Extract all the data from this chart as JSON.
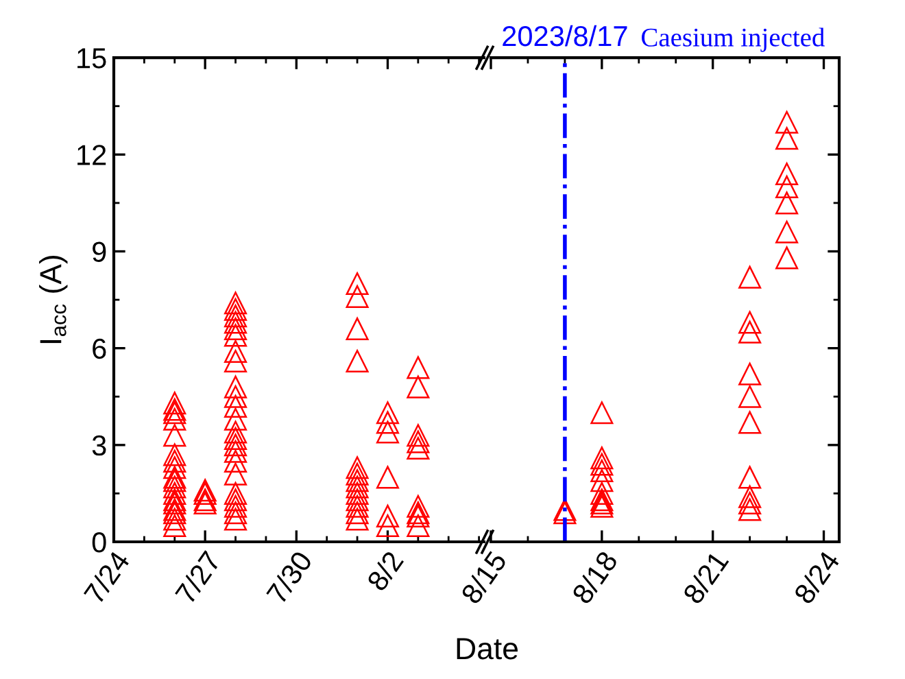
{
  "chart_data": [
    {
      "type": "scatter",
      "ylabel": "I$_{acc}$ (A)",
      "xlabel": "Date",
      "marker": "triangle",
      "xlim": [
        "2023-07-24",
        "2023-08-05T04:00"
      ],
      "xticks": [
        {
          "value": "2023-07-24",
          "label": "7/24"
        },
        {
          "value": "2023-07-27",
          "label": "7/27"
        },
        {
          "value": "2023-07-30",
          "label": "7/30"
        },
        {
          "value": "2023-08-02",
          "label": "8/2"
        }
      ],
      "ylim": [
        0,
        15
      ],
      "yticks": [
        0,
        3,
        6,
        9,
        12,
        15
      ],
      "series": [
        {
          "color": "#ff0000",
          "x": [
            "2023-07-26",
            "2023-07-26",
            "2023-07-26",
            "2023-07-26",
            "2023-07-26",
            "2023-07-26",
            "2023-07-26",
            "2023-07-26",
            "2023-07-26",
            "2023-07-26",
            "2023-07-26",
            "2023-07-26",
            "2023-07-26",
            "2023-07-26",
            "2023-07-26",
            "2023-07-26",
            "2023-07-26",
            "2023-07-26"
          ],
          "values": [
            4.3,
            4.1,
            4.0,
            3.8,
            3.3,
            2.7,
            2.5,
            2.3,
            2.0,
            1.9,
            1.7,
            1.5,
            1.3,
            1.2,
            1.0,
            0.9,
            0.7,
            0.5
          ]
        },
        {
          "color": "#ff0000",
          "x": [
            "2023-07-27",
            "2023-07-27",
            "2023-07-27",
            "2023-07-27"
          ],
          "values": [
            1.6,
            1.5,
            1.3,
            1.2
          ]
        },
        {
          "color": "#ff0000",
          "x": [
            "2023-07-28",
            "2023-07-28",
            "2023-07-28",
            "2023-07-28",
            "2023-07-28",
            "2023-07-28",
            "2023-07-28",
            "2023-07-28",
            "2023-07-28",
            "2023-07-28",
            "2023-07-28",
            "2023-07-28",
            "2023-07-28",
            "2023-07-28",
            "2023-07-28",
            "2023-07-28",
            "2023-07-28",
            "2023-07-28",
            "2023-07-28",
            "2023-07-28",
            "2023-07-28",
            "2023-07-28",
            "2023-07-28"
          ],
          "values": [
            7.4,
            7.2,
            7.0,
            6.8,
            6.6,
            6.4,
            5.9,
            5.6,
            4.8,
            4.5,
            4.2,
            3.8,
            3.4,
            3.2,
            3.0,
            2.8,
            2.5,
            2.1,
            1.5,
            1.3,
            1.1,
            0.9,
            0.7
          ]
        },
        {
          "color": "#ff0000",
          "x": [
            "2023-08-01",
            "2023-08-01",
            "2023-08-01",
            "2023-08-01",
            "2023-08-01",
            "2023-08-01",
            "2023-08-01",
            "2023-08-01",
            "2023-08-01",
            "2023-08-01",
            "2023-08-01",
            "2023-08-01",
            "2023-08-01"
          ],
          "values": [
            8.0,
            7.6,
            6.6,
            5.6,
            2.3,
            2.1,
            1.9,
            1.7,
            1.5,
            1.3,
            1.1,
            0.9,
            0.7
          ]
        },
        {
          "color": "#ff0000",
          "x": [
            "2023-08-02",
            "2023-08-02",
            "2023-08-02",
            "2023-08-02",
            "2023-08-02",
            "2023-08-02"
          ],
          "values": [
            4.0,
            3.7,
            3.4,
            2.0,
            0.8,
            0.5
          ]
        },
        {
          "color": "#ff0000",
          "x": [
            "2023-08-03",
            "2023-08-03",
            "2023-08-03",
            "2023-08-03",
            "2023-08-03",
            "2023-08-03",
            "2023-08-03",
            "2023-08-03",
            "2023-08-03"
          ],
          "values": [
            5.4,
            4.8,
            3.3,
            3.1,
            2.9,
            1.1,
            0.9,
            0.8,
            0.5
          ]
        }
      ]
    },
    {
      "type": "scatter",
      "marker": "triangle",
      "tick_labels": "x",
      "xlim": [
        "2023-08-15",
        "2023-08-24T10:00"
      ],
      "xticks": [
        {
          "value": "2023-08-15",
          "label": "8/15"
        },
        {
          "value": "2023-08-18",
          "label": "8/18"
        },
        {
          "value": "2023-08-21",
          "label": "8/21"
        },
        {
          "value": "2023-08-24",
          "label": "8/24"
        }
      ],
      "ylim": [
        0,
        15
      ],
      "yticks": [
        0,
        3,
        6,
        9,
        12,
        15
      ],
      "ref_lines": [
        {
          "axis": "x",
          "value": "2023-08-17",
          "label": "2023/8/17",
          "color": "#0000ff",
          "line_style": "dashdot"
        }
      ],
      "annotations": [
        "Caesium injected"
      ],
      "series": [
        {
          "color": "#ff0000",
          "x": [
            "2023-08-17",
            "2023-08-17"
          ],
          "values": [
            1.0,
            0.9
          ]
        },
        {
          "color": "#ff0000",
          "x": [
            "2023-08-18",
            "2023-08-18",
            "2023-08-18",
            "2023-08-18",
            "2023-08-18",
            "2023-08-18",
            "2023-08-18",
            "2023-08-18",
            "2023-08-18"
          ],
          "values": [
            4.0,
            2.6,
            2.4,
            2.2,
            1.9,
            1.5,
            1.3,
            1.2,
            1.1
          ]
        },
        {
          "color": "#ff0000",
          "x": [
            "2023-08-22",
            "2023-08-22",
            "2023-08-22",
            "2023-08-22",
            "2023-08-22",
            "2023-08-22",
            "2023-08-22",
            "2023-08-22",
            "2023-08-22",
            "2023-08-22"
          ],
          "values": [
            8.2,
            6.8,
            6.5,
            5.2,
            4.5,
            3.7,
            2.0,
            1.4,
            1.2,
            1.0
          ]
        },
        {
          "color": "#ff0000",
          "x": [
            "2023-08-23",
            "2023-08-23",
            "2023-08-23",
            "2023-08-23",
            "2023-08-23",
            "2023-08-23",
            "2023-08-23"
          ],
          "values": [
            13.0,
            12.5,
            11.4,
            11.0,
            10.5,
            9.6,
            8.8
          ]
        }
      ]
    }
  ]
}
